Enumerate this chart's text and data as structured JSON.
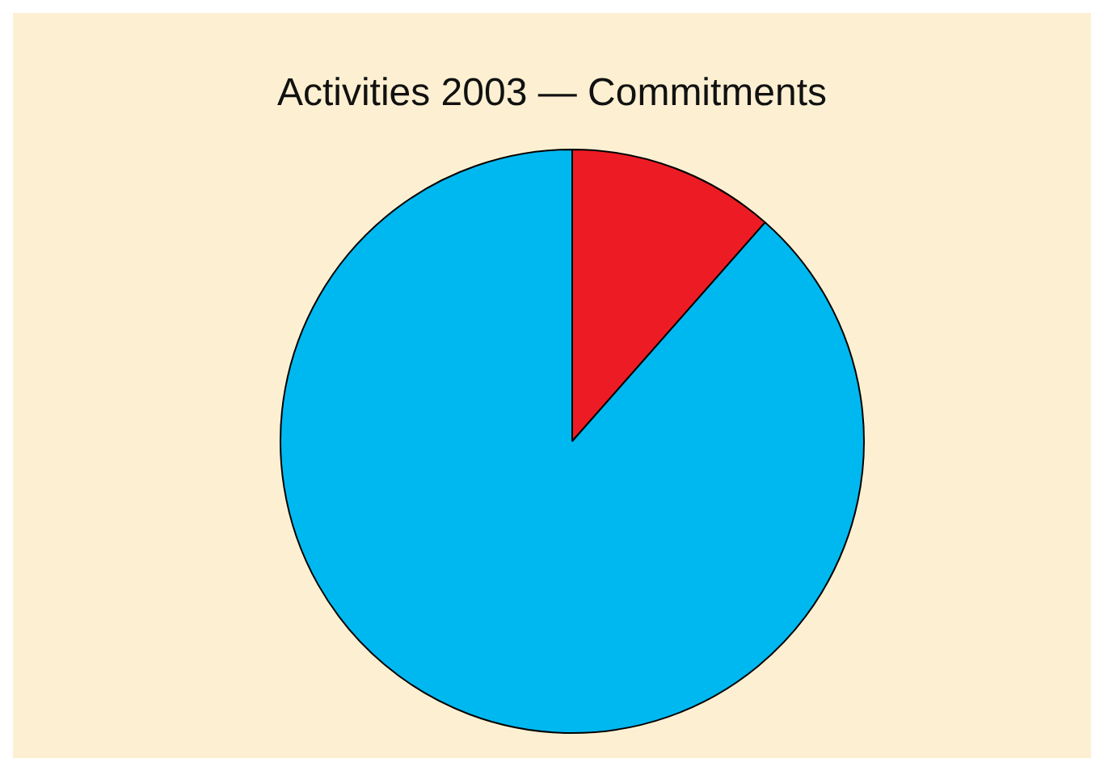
{
  "chart_data": {
    "type": "pie",
    "title": "Activities 2003 — Commitments",
    "categories": [
      null,
      null
    ],
    "values": [
      11.5,
      88.5
    ],
    "colors": [
      "#ed1c24",
      "#00b8f0"
    ],
    "legend": false
  }
}
